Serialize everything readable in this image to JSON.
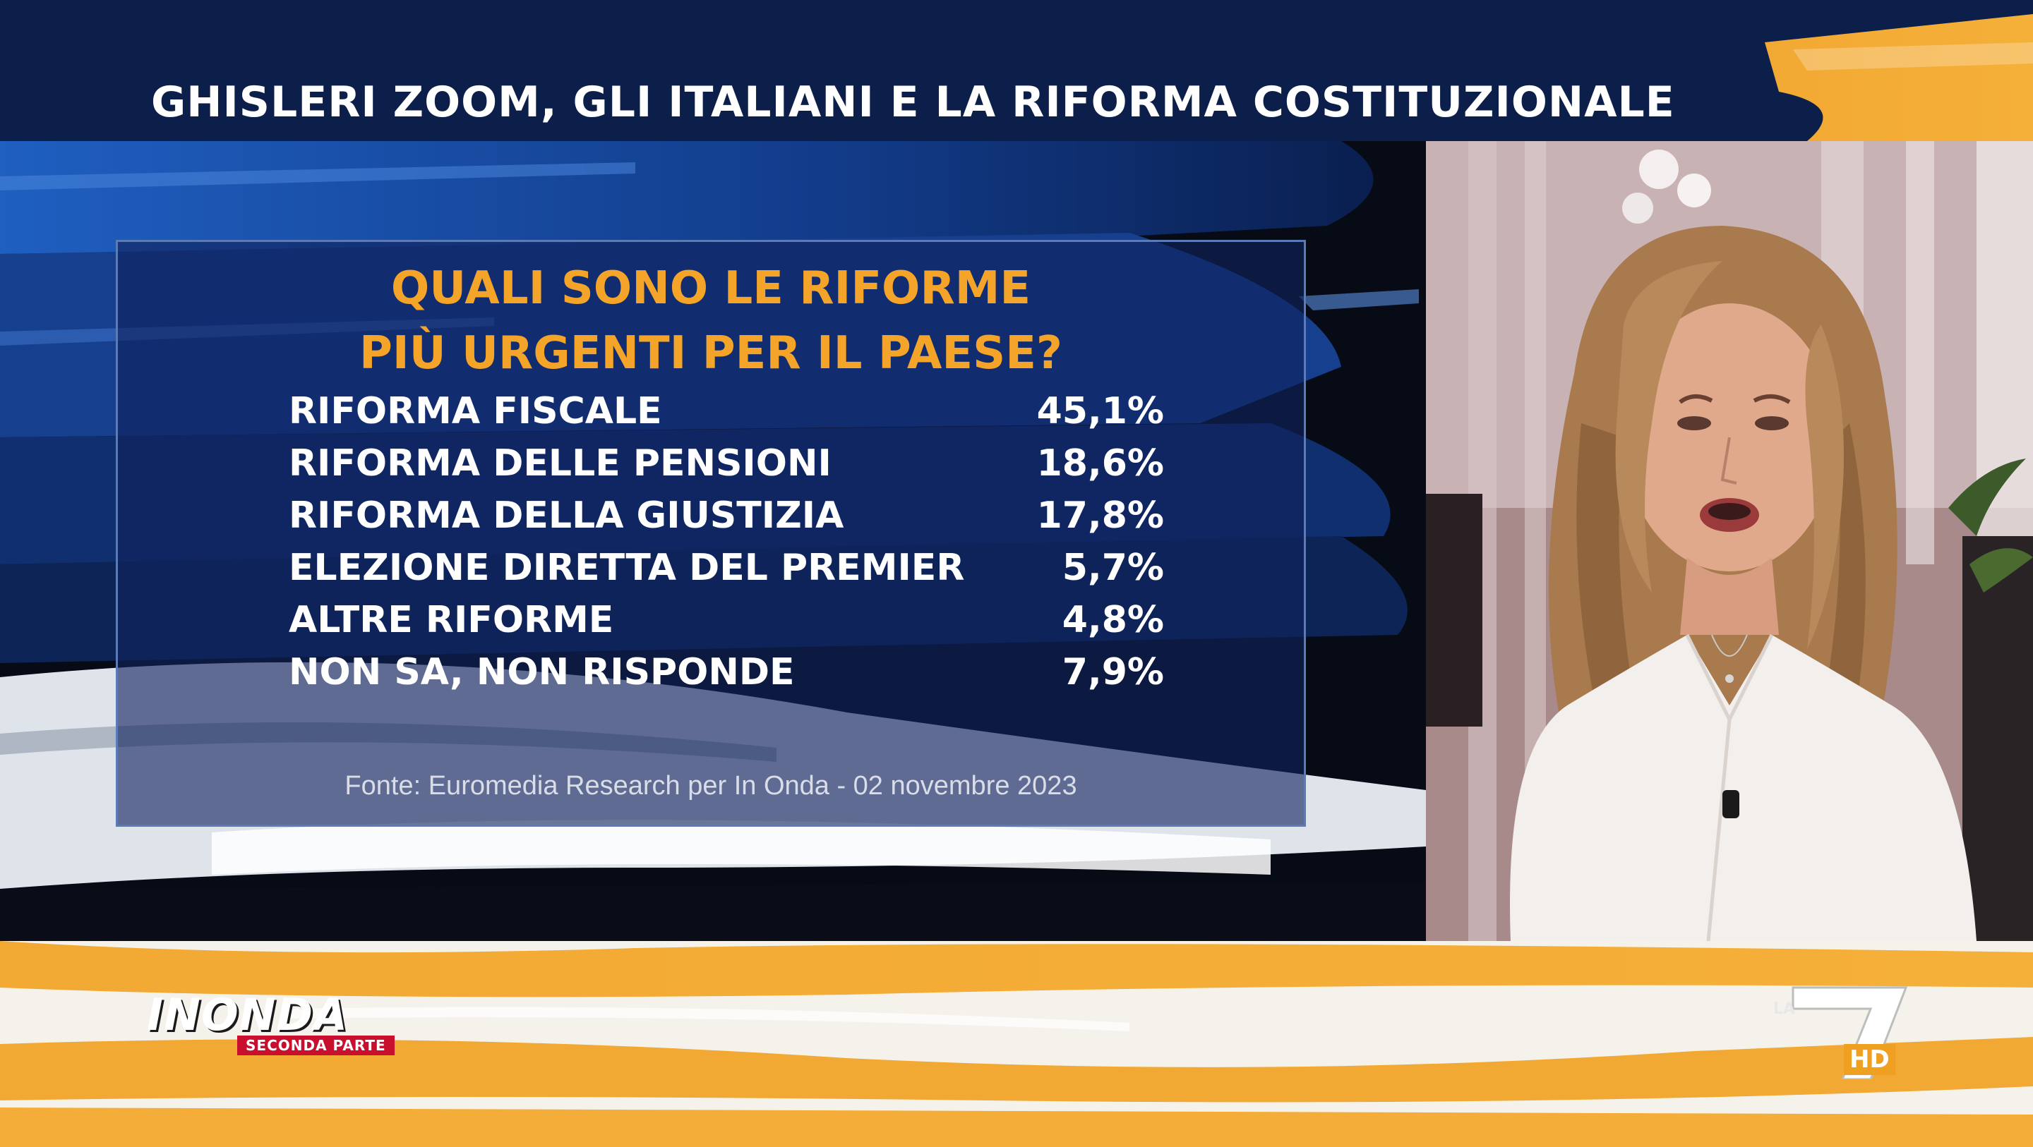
{
  "header": {
    "title": "GHISLERI ZOOM, GLI ITALIANI E LA RIFORMA COSTITUZIONALE"
  },
  "poll": {
    "question_line1": "QUALI SONO LE RIFORME",
    "question_line2": "PIÙ URGENTI PER IL PAESE?",
    "results": [
      {
        "label": "RIFORMA FISCALE",
        "value": "45,1%"
      },
      {
        "label": "RIFORMA DELLE PENSIONI",
        "value": "18,6%"
      },
      {
        "label": "RIFORMA DELLA GIUSTIZIA",
        "value": "17,8%"
      },
      {
        "label": "ELEZIONE DIRETTA DEL PREMIER",
        "value": "5,7%"
      },
      {
        "label": "ALTRE RIFORME",
        "value": "4,8%"
      },
      {
        "label": "NON SA, NON RISPONDE",
        "value": "7,9%"
      }
    ],
    "source": "Fonte: Euromedia Research per In Onda - 02 novembre 2023"
  },
  "branding": {
    "show_name": "INONDA",
    "show_subtitle": "SECONDA PARTE",
    "channel_prefix": "LA",
    "channel_hd": "HD"
  },
  "colors": {
    "accent_orange": "#f4a428",
    "panel_blue": "#10225c",
    "brand_red": "#c8102e"
  }
}
